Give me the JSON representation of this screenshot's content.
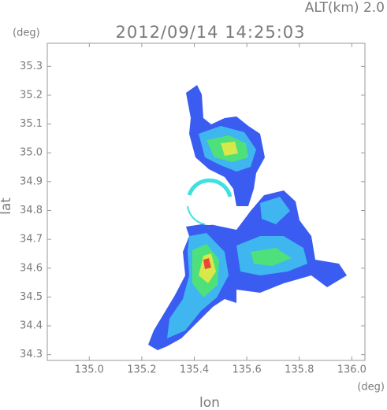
{
  "chart_data": {
    "type": "map",
    "altitude_label": "ALT(km) 2.0",
    "title": "2012/09/14 14:25:03",
    "y_unit": "(deg)",
    "x_unit": "(deg)",
    "xlabel": "lon",
    "ylabel": "lat",
    "xlim": [
      134.84,
      136.05
    ],
    "ylim": [
      34.28,
      35.38
    ],
    "xticks": [
      {
        "value": 135,
        "label": "135.0"
      },
      135.2,
      135.4,
      135.6,
      135.8,
      {
        "value": 136,
        "label": "136.0"
      }
    ],
    "yticks": [
      34.3,
      34.4,
      34.5,
      34.6,
      34.7,
      34.8,
      34.9,
      {
        "value": 35,
        "label": "35.0"
      },
      35.1,
      35.2,
      35.3
    ]
  }
}
